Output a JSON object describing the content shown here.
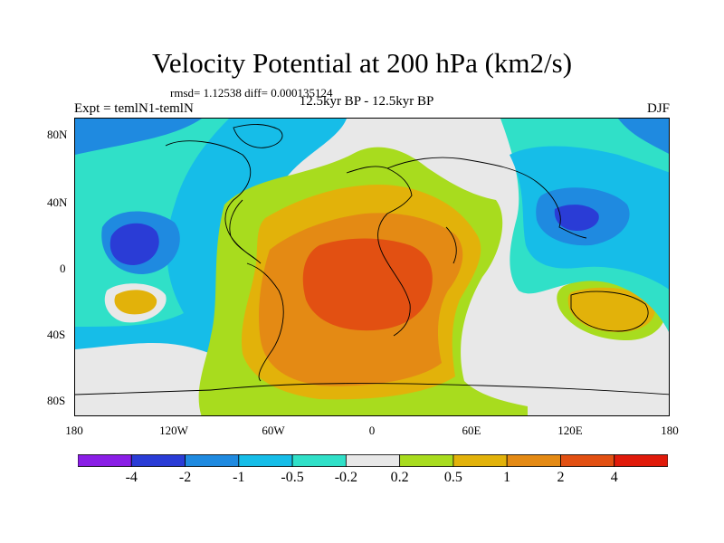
{
  "title": "Velocity Potential at 200 hPa (km2/s)",
  "stats": "rmsd= 1.12538 diff= 0.000135124",
  "experiment": "Expt = temlN1-temlN",
  "period": "12.5kyr BP - 12.5kyr BP",
  "season": "DJF",
  "y_axis_labels": [
    "80N",
    "40N",
    "0",
    "40S",
    "80S"
  ],
  "x_axis_labels": [
    "180",
    "120W",
    "60W",
    "0",
    "60E",
    "120E",
    "180"
  ],
  "colorbar": {
    "colors": [
      "#8a1ee6",
      "#2a3cd6",
      "#1f8ae0",
      "#16bde8",
      "#30e0c8",
      "#e8e8e8",
      "#a8dc1e",
      "#e2b20a",
      "#e48a14",
      "#e25012",
      "#e01a0a"
    ],
    "labels": [
      "-4",
      "-2",
      "-1",
      "-0.5",
      "-0.2",
      "0.2",
      "0.5",
      "1",
      "2",
      "4"
    ]
  }
}
